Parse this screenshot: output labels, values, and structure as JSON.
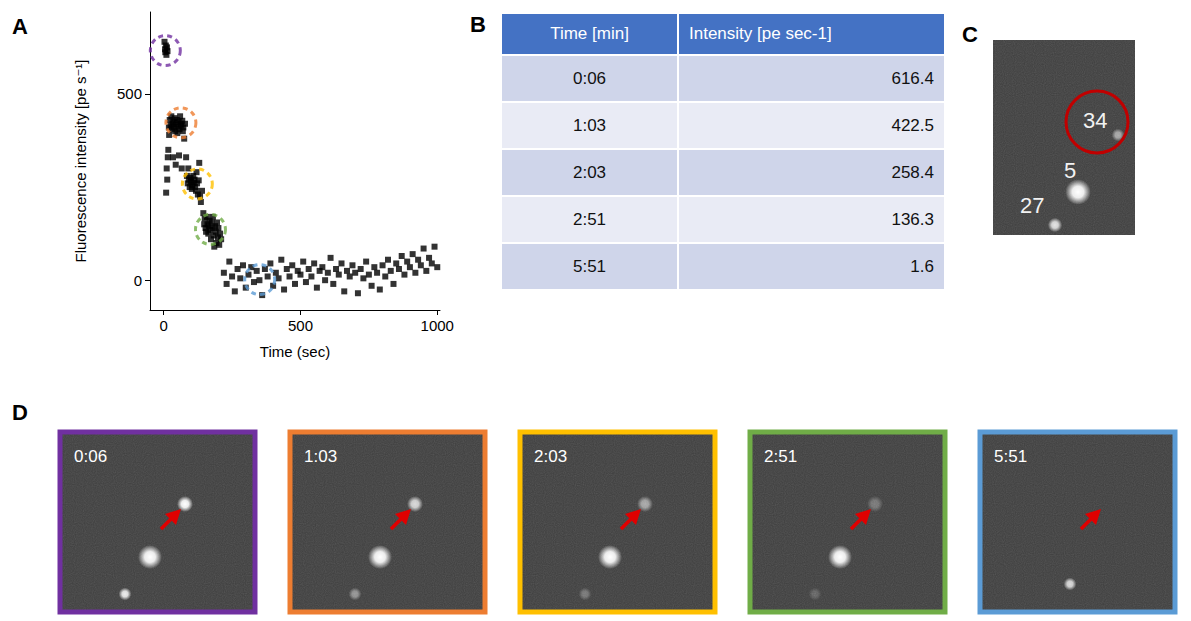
{
  "panel_letters": [
    "A",
    "B",
    "C",
    "D"
  ],
  "chart_data": {
    "type": "scatter",
    "x_label": "Time (sec)",
    "y_label": "Fluorescence intensity [pe s⁻¹]",
    "color": "#000000",
    "marker": "square",
    "grid": false,
    "xlim": [
      -50,
      1010
    ],
    "ylim": [
      -80,
      720
    ],
    "xticks": [
      0,
      500,
      1000
    ],
    "yticks": [
      0,
      500
    ],
    "x": [
      3,
      5,
      6,
      8,
      10,
      12,
      14,
      9,
      11,
      13,
      15,
      17,
      19,
      20,
      22,
      25,
      28,
      30,
      32,
      35,
      38,
      40,
      42,
      45,
      48,
      50,
      52,
      55,
      58,
      60,
      62,
      65,
      68,
      70,
      72,
      34,
      44,
      56,
      66,
      75,
      78,
      82,
      85,
      88,
      90,
      92,
      95,
      98,
      100,
      103,
      105,
      108,
      110,
      113,
      115,
      118,
      120,
      122,
      125,
      128,
      130,
      133,
      136,
      140,
      145,
      148,
      150,
      153,
      155,
      158,
      160,
      163,
      165,
      168,
      170,
      173,
      175,
      178,
      180,
      183,
      185,
      188,
      190,
      193,
      195,
      198,
      200,
      203,
      206,
      210,
      220,
      230,
      240,
      250,
      260,
      270,
      280,
      290,
      300,
      310,
      320,
      330,
      340,
      350,
      360,
      370,
      380,
      390,
      400,
      410,
      420,
      430,
      440,
      450,
      460,
      470,
      480,
      490,
      500,
      510,
      520,
      530,
      540,
      550,
      560,
      570,
      580,
      590,
      600,
      610,
      620,
      630,
      640,
      650,
      660,
      670,
      680,
      690,
      700,
      710,
      720,
      730,
      740,
      750,
      760,
      770,
      780,
      790,
      800,
      810,
      820,
      830,
      840,
      850,
      860,
      870,
      880,
      890,
      900,
      910,
      920,
      930,
      940,
      950,
      960,
      970,
      980,
      990,
      1000
    ],
    "values": [
      640,
      620,
      612,
      630,
      605,
      625,
      615,
      235,
      300,
      270,
      330,
      350,
      410,
      390,
      430,
      415,
      440,
      405,
      420,
      425,
      410,
      435,
      400,
      418,
      430,
      395,
      412,
      425,
      405,
      440,
      420,
      415,
      428,
      400,
      410,
      330,
      310,
      335,
      300,
      380,
      420,
      330,
      280,
      260,
      300,
      270,
      250,
      275,
      265,
      245,
      255,
      280,
      262,
      270,
      250,
      240,
      290,
      260,
      230,
      268,
      315,
      225,
      210,
      240,
      180,
      150,
      165,
      140,
      130,
      170,
      150,
      125,
      145,
      160,
      135,
      110,
      155,
      140,
      170,
      120,
      90,
      145,
      130,
      100,
      155,
      115,
      140,
      95,
      125,
      110,
      20,
      -10,
      50,
      10,
      -30,
      30,
      5,
      40,
      -20,
      15,
      35,
      -5,
      25,
      0,
      -40,
      30,
      10,
      45,
      -15,
      20,
      5,
      55,
      -25,
      30,
      10,
      40,
      -10,
      25,
      15,
      50,
      -5,
      30,
      10,
      45,
      -20,
      25,
      35,
      0,
      20,
      60,
      -10,
      30,
      15,
      45,
      -30,
      25,
      10,
      40,
      20,
      -35,
      30,
      5,
      50,
      15,
      -15,
      35,
      20,
      -25,
      40,
      10,
      55,
      25,
      -10,
      45,
      30,
      65,
      15,
      50,
      35,
      70,
      20,
      55,
      40,
      85,
      25,
      60,
      45,
      90,
      35
    ],
    "highlights": {
      "x": [
        6,
        63,
        123,
        171,
        351
      ],
      "values": [
        616.4,
        422.5,
        258.4,
        136.3,
        1.6
      ],
      "colors": [
        "#7030a0",
        "#ed7d31",
        "#ffc000",
        "#70ad47",
        "#5b9bd5"
      ]
    }
  },
  "table": {
    "header": [
      "Time [min]",
      "Intensity [pe sec-1]"
    ],
    "rows": [
      [
        "0:06",
        616.4
      ],
      [
        "1:03",
        422.5
      ],
      [
        "2:03",
        258.4
      ],
      [
        "2:51",
        136.3
      ],
      [
        "5:51",
        1.6
      ]
    ]
  },
  "image_C": {
    "labels": [
      "34",
      "5",
      "27"
    ]
  },
  "frames_D": [
    {
      "time": "0:06",
      "color": "#7030a0"
    },
    {
      "time": "1:03",
      "color": "#ed7d31"
    },
    {
      "time": "2:03",
      "color": "#ffc000"
    },
    {
      "time": "2:51",
      "color": "#70ad47"
    },
    {
      "time": "5:51",
      "color": "#5b9bd5"
    }
  ]
}
